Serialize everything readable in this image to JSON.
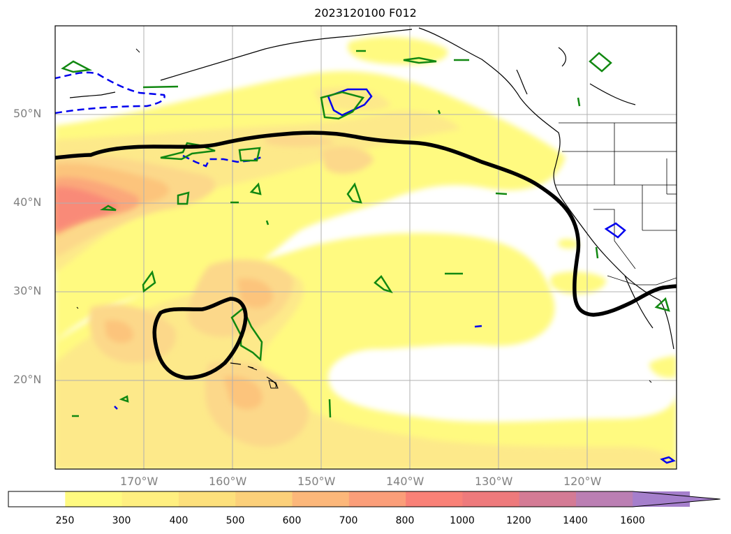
{
  "title": "2023120100 F012",
  "map": {
    "projection": "plate-carree",
    "lon_range": [
      -180,
      -110
    ],
    "lat_range": [
      10,
      60
    ],
    "gridlines": true,
    "lon_ticks": [
      "170°W",
      "160°W",
      "150°W",
      "140°W",
      "130°W",
      "120°W"
    ],
    "lat_ticks": [
      "50°N",
      "40°N",
      "30°N",
      "20°N"
    ]
  },
  "colorbar": {
    "levels": [
      "250",
      "300",
      "400",
      "500",
      "600",
      "700",
      "800",
      "1000",
      "1200",
      "1400",
      "1600"
    ],
    "colors": [
      "#ffffff",
      "#fffa80",
      "#ffef80",
      "#fde07c",
      "#fcd07a",
      "#fcb77a",
      "#fb9e79",
      "#f98177",
      "#ee7a7c",
      "#d47b95",
      "#bb7fb3",
      "#a57fcc"
    ],
    "extend": "max"
  },
  "contours": {
    "black_line": "thick black contour",
    "blue_dashed": "blue dashed contour",
    "green_regions": "green contour regions"
  }
}
